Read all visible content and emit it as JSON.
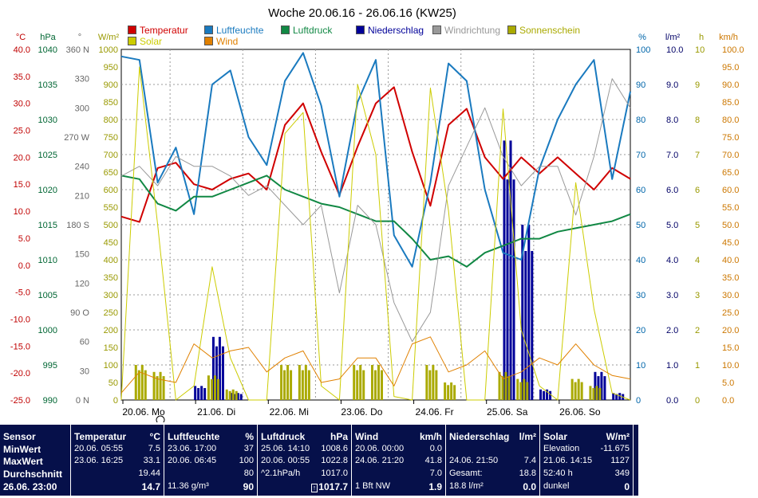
{
  "title": "Woche 20.06.16 - 26.06.16 (KW25)",
  "axes_left": [
    {
      "unit": "°C",
      "color": "#c00000",
      "ticks": [
        "40.0",
        "35.0",
        "30.0",
        "25.0",
        "20.0",
        "15.0",
        "10.0",
        "5.0",
        "0.0",
        "-5.0",
        "-10.0",
        "-15.0",
        "-20.0",
        "-25.0"
      ]
    },
    {
      "unit": "hPa",
      "color": "#006633",
      "ticks": [
        "1040",
        "1035",
        "1030",
        "1025",
        "1020",
        "1015",
        "1010",
        "1005",
        "1000",
        "995",
        "990"
      ]
    },
    {
      "unit": "°",
      "color": "#666666",
      "ticks": [
        "360 N",
        "330",
        "300",
        "270 W",
        "240",
        "210",
        "180 S",
        "150",
        "120",
        "90  O",
        "60",
        "30",
        "0  N"
      ]
    },
    {
      "unit": "W/m²",
      "color": "#999900",
      "ticks": [
        "1000",
        "950",
        "900",
        "850",
        "800",
        "750",
        "700",
        "650",
        "600",
        "550",
        "500",
        "450",
        "400",
        "350",
        "300",
        "250",
        "200",
        "150",
        "100",
        "50",
        "0"
      ]
    }
  ],
  "axes_right": [
    {
      "unit": "%",
      "color": "#0066aa",
      "ticks": [
        "100",
        "90",
        "80",
        "70",
        "60",
        "50",
        "40",
        "30",
        "20",
        "10",
        "0"
      ]
    },
    {
      "unit": "l/m²",
      "color": "#000066",
      "ticks": [
        "10.0",
        "9.0",
        "8.0",
        "7.0",
        "6.0",
        "5.0",
        "4.0",
        "3.0",
        "2.0",
        "1.0",
        "0.0"
      ]
    },
    {
      "unit": "h",
      "color": "#999900",
      "ticks": [
        "10",
        "9",
        "8",
        "7",
        "6",
        "5",
        "4",
        "3",
        "2",
        "1",
        "0"
      ]
    },
    {
      "unit": "km/h",
      "color": "#cc7700",
      "ticks": [
        "100.0",
        "95.0",
        "90.0",
        "85.0",
        "80.0",
        "75.0",
        "70.0",
        "65.0",
        "60.0",
        "55.0",
        "50.0",
        "45.0",
        "40.0",
        "35.0",
        "30.0",
        "25.0",
        "20.0",
        "15.0",
        "10.0",
        "5.0",
        "0.0"
      ]
    }
  ],
  "legend": [
    {
      "label": "Temperatur",
      "color": "#d00000"
    },
    {
      "label": "Luftfeuchte",
      "color": "#1a7abf"
    },
    {
      "label": "Luftdruck",
      "color": "#118844"
    },
    {
      "label": "Niederschlag",
      "color": "#000099"
    },
    {
      "label": "Windrichtung",
      "color": "#999999"
    },
    {
      "label": "Sonnenschein",
      "color": "#aaaa00"
    },
    {
      "label": "Solar",
      "color": "#cccc00"
    },
    {
      "label": "Wind",
      "color": "#e08000"
    }
  ],
  "chart_data": {
    "type": "line",
    "title": "Woche 20.06.16 - 26.06.16 (KW25)",
    "x_categories": [
      "20.06. Mo",
      "21.06. Di",
      "22.06. Mi",
      "23.06. Do",
      "24.06. Fr",
      "25.06. Sa",
      "26.06. So"
    ],
    "x_hours": [
      0,
      6,
      12,
      18,
      24,
      30,
      36,
      42,
      48,
      54,
      60,
      66,
      72,
      78,
      84,
      90,
      96,
      102,
      108,
      114,
      120,
      126,
      132,
      138,
      144,
      150,
      156,
      162,
      168
    ],
    "grid": true,
    "series": [
      {
        "name": "Temperatur",
        "unit": "°C",
        "ylim": [
          -25,
          40
        ],
        "values": [
          9,
          8,
          18,
          19,
          15,
          14,
          16,
          17,
          14,
          26,
          30,
          21,
          13,
          22,
          30,
          33,
          21,
          11,
          26,
          29,
          20,
          16,
          20,
          17,
          20,
          17,
          14,
          18,
          16
        ]
      },
      {
        "name": "Luftfeuchte",
        "unit": "%",
        "ylim": [
          0,
          100
        ],
        "values": [
          98,
          97,
          62,
          72,
          53,
          90,
          94,
          75,
          67,
          91,
          99,
          84,
          58,
          85,
          97,
          47,
          38,
          62,
          96,
          91,
          60,
          42,
          40,
          66,
          80,
          90,
          97,
          63,
          88
        ]
      },
      {
        "name": "Luftdruck",
        "unit": "hPa",
        "ylim": [
          990,
          1040
        ],
        "values": [
          1022,
          1021.5,
          1018,
          1017,
          1019,
          1019,
          1020,
          1021,
          1022,
          1020,
          1019,
          1018,
          1017.5,
          1016.5,
          1015.5,
          1015.5,
          1013,
          1010,
          1010.5,
          1009,
          1011,
          1012,
          1013,
          1013,
          1014,
          1014.5,
          1015,
          1015.5,
          1016.5
        ]
      },
      {
        "name": "Windrichtung",
        "unit": "°",
        "ylim": [
          0,
          360
        ],
        "values": [
          230,
          240,
          220,
          250,
          240,
          240,
          230,
          210,
          220,
          200,
          180,
          200,
          110,
          200,
          180,
          100,
          60,
          90,
          220,
          260,
          300,
          250,
          220,
          240,
          240,
          190,
          250,
          330,
          300
        ]
      },
      {
        "name": "Solar",
        "unit": "W/m²",
        "ylim": [
          0,
          1000
        ],
        "values": [
          0,
          950,
          500,
          0,
          40,
          380,
          120,
          0,
          0,
          760,
          820,
          40,
          0,
          900,
          700,
          10,
          0,
          890,
          540,
          0,
          0,
          830,
          200,
          40,
          0,
          620,
          260,
          20,
          0
        ]
      },
      {
        "name": "Wind",
        "unit": "km/h",
        "ylim": [
          0,
          100
        ],
        "values": [
          2,
          8,
          6,
          5,
          16,
          12,
          14,
          15,
          8,
          12,
          14,
          5,
          6,
          12,
          12,
          4,
          16,
          18,
          8,
          10,
          14,
          6,
          8,
          12,
          10,
          16,
          10,
          7,
          6
        ]
      },
      {
        "name": "Niederschlag",
        "unit": "l/m²",
        "ylim": [
          0,
          10
        ],
        "values": [
          0,
          0,
          0,
          0,
          0.4,
          1.8,
          0.2,
          0,
          0,
          0,
          0,
          0,
          0,
          0,
          0,
          0,
          0,
          0,
          0,
          0,
          0,
          7.4,
          5.0,
          0.3,
          0,
          0,
          0.8,
          0.2,
          0
        ]
      },
      {
        "name": "Sonnenschein",
        "unit": "h",
        "ylim": [
          0,
          10
        ],
        "values": [
          0,
          1,
          0.8,
          0,
          0,
          0.7,
          0.3,
          0,
          0,
          1,
          1,
          0,
          0,
          1,
          1,
          0,
          0,
          1,
          0.5,
          0,
          0,
          0.8,
          0.6,
          0,
          0,
          0.6,
          0.4,
          0,
          0
        ]
      }
    ]
  },
  "footer": {
    "sensor": {
      "header": "Sensor",
      "rows": [
        "MinWert",
        "MaxWert",
        "Durchschnitt"
      ],
      "current": "26.06. 23:00"
    },
    "temperatur": {
      "header": "Temperatur",
      "unit": "°C",
      "min_time": "20.06. 05:55",
      "min_val": "7.5",
      "max_time": "23.06. 16:25",
      "max_val": "33.1",
      "avg": "19.44",
      "current": "14.7"
    },
    "luftfeuchte": {
      "header": "Luftfeuchte",
      "unit": "%",
      "min_time": "23.06. 17:00",
      "min_val": "37",
      "max_time": "20.06. 06:45",
      "max_val": "100",
      "avg": "80",
      "abs": "11.36 g/m³",
      "current": "90"
    },
    "luftdruck": {
      "header": "Luftdruck",
      "unit": "hPa",
      "min_time": "25.06. 14:10",
      "min_val": "1008.6",
      "max_time": "20.06. 00:55",
      "max_val": "1022.8",
      "trend": "^2.1hPa/h",
      "avg": "1017.0",
      "current": "1017.7"
    },
    "wind": {
      "header": "Wind",
      "unit": "km/h",
      "min_time": "20.06. 00:00",
      "min_val": "0.0",
      "max_time": "24.06. 21:20",
      "max_val": "41.8",
      "avg": "7.0",
      "bft": "1 Bft NW",
      "current": "1.9"
    },
    "niederschlag": {
      "header": "Niederschlag",
      "unit": "l/m²",
      "max_time": "24.06. 21:50",
      "max_val": "7.4",
      "gesamt_label": "Gesamt:",
      "gesamt_val": "18.8",
      "sum": "18.8 l/m²",
      "current": "0.0"
    },
    "solar": {
      "header": "Solar",
      "unit": "W/m²",
      "elev_label": "Elevation",
      "elev_val": "-11.675",
      "max_time": "21.06. 14:15",
      "max_val": "1127",
      "sun_hours": "52:40 h",
      "sun_val": "349",
      "dark": "dunkel",
      "current": "0"
    }
  }
}
